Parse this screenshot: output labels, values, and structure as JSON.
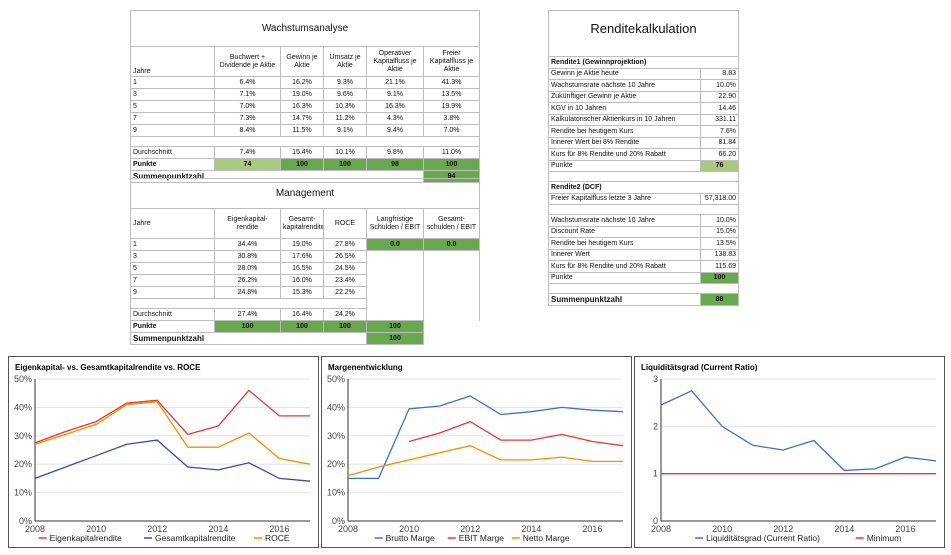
{
  "wachstum": {
    "title": "Wachstumsanalyse",
    "headers": [
      "Jahre",
      "Buchwert + Dividende je Aktie",
      "Gewinn je Aktie",
      "Umsatz je Aktie",
      "Operativer Kapitalfluss je Aktie",
      "Freier Kapitalfluss je Aktie"
    ],
    "rows": [
      [
        "1",
        "6.4%",
        "16.2%",
        "9.3%",
        "21.1%",
        "41.3%"
      ],
      [
        "3",
        "7.1%",
        "19.0%",
        "9.6%",
        "9.1%",
        "13.5%"
      ],
      [
        "5",
        "7.0%",
        "16.3%",
        "10.3%",
        "16.3%",
        "19.9%"
      ],
      [
        "7",
        "7.3%",
        "14.7%",
        "11.2%",
        "4.3%",
        "3.8%"
      ],
      [
        "9",
        "8.4%",
        "11.5%",
        "9.1%",
        "9.4%",
        "7.0%"
      ]
    ],
    "avg": [
      "Durchschnitt",
      "7.4%",
      "15.4%",
      "10.1%",
      "9.8%",
      "11.0%"
    ],
    "points": [
      "Punkte",
      "74",
      "100",
      "100",
      "98",
      "100"
    ],
    "sum_label": "Summenpunktzahl",
    "sum_value": "94"
  },
  "management": {
    "title": "Management",
    "headers": [
      "Jahre",
      "Eigenkapital-rendite",
      "Gesamt-kapitalrendite",
      "ROCE",
      "Langfristige Schulden / EBIT",
      "Gesamt-schulden / EBIT"
    ],
    "rows": [
      [
        "1",
        "34.4%",
        "19.0%",
        "27.8%",
        "0.0",
        "0.0"
      ],
      [
        "3",
        "30.8%",
        "17.6%",
        "26.5%"
      ],
      [
        "5",
        "28.0%",
        "16.5%",
        "24.5%"
      ],
      [
        "7",
        "26.2%",
        "16.0%",
        "23.4%"
      ],
      [
        "9",
        "24.8%",
        "15.3%",
        "22.2%"
      ]
    ],
    "avg": [
      "Durchschnitt",
      "27.4%",
      "16.4%",
      "24.2%"
    ],
    "points": [
      "Punkte",
      "100",
      "100",
      "100",
      "100"
    ],
    "sum_label": "Summenpunktzahl",
    "sum_value": "100"
  },
  "rendite": {
    "title": "Renditekalkulation",
    "s1_title": "Rendite1 (Gewinnprojektion)",
    "s1": [
      [
        "Gewinn je Aktie heute",
        "8.83"
      ],
      [
        "Wachstumsrate nächste 10 Jahre",
        "10.0%"
      ],
      [
        "Zukünftiger Gewinn je Aktie",
        "22.90"
      ],
      [
        "KGV in 10 Jahren",
        "14.46"
      ],
      [
        "Kalkulatorischer Aktienkurs in 10 Jahren",
        "331.11"
      ],
      [
        "Rendite bei heutigem Kurs",
        "7.6%"
      ],
      [
        "Innerer Wert bei 8% Rendite",
        "81.84"
      ],
      [
        "Kurs für 8% Rendite und 20% Rabatt",
        "66.20"
      ]
    ],
    "s1_points": [
      "Punkte",
      "76"
    ],
    "s2_title": "Rendite2 (DCF)",
    "s2_a": [
      [
        "Freier Kapitalfluss letzte 3 Jahre",
        "57,318.00"
      ]
    ],
    "s2": [
      [
        "Wachstumsrate nächste 10 Jahre",
        "10.0%"
      ],
      [
        "Discount Rate",
        "15.0%"
      ],
      [
        "Rendite bei heutigem Kurs",
        "13.5%"
      ],
      [
        "Innerer Wert",
        "138.83"
      ],
      [
        "Kurs für 8% Rendite und 20% Rabatt",
        "115.69"
      ]
    ],
    "s2_points": [
      "Punkte",
      "100"
    ],
    "sum_label": "Summenpunktzahl",
    "sum_value": "88"
  },
  "chart_data": [
    {
      "type": "line",
      "title": "Eigenkapital- vs. Gesamtkapitalrendite vs. ROCE",
      "x": [
        2008,
        2009,
        2010,
        2011,
        2012,
        2013,
        2014,
        2015,
        2016,
        2017
      ],
      "series": [
        {
          "name": "Eigenkapitalrendite",
          "color": "#e53935",
          "values": [
            27.5,
            31.5,
            35,
            41.5,
            42.5,
            30.5,
            33.5,
            46,
            37,
            37
          ]
        },
        {
          "name": "Gesamtkapitalrendite",
          "color": "#3949ab",
          "values": [
            15,
            19,
            23,
            27,
            28.5,
            19,
            18,
            20.5,
            15,
            14
          ]
        },
        {
          "name": "ROCE",
          "color": "#fb8c00",
          "values": [
            27,
            30.5,
            34,
            41,
            42,
            26,
            26,
            31,
            22,
            20
          ]
        }
      ],
      "ylim": [
        0,
        50
      ],
      "yticks": [
        "0%",
        "10%",
        "20%",
        "30%",
        "40%",
        "50%"
      ],
      "xticks": [
        "2008",
        "2010",
        "2012",
        "2014",
        "2016"
      ]
    },
    {
      "type": "line",
      "title": "Margenentwicklung",
      "x": [
        2008,
        2009,
        2010,
        2011,
        2012,
        2013,
        2014,
        2015,
        2016,
        2017
      ],
      "series": [
        {
          "name": "Brutto Marge",
          "color": "#3d6fd1",
          "values": [
            15,
            15,
            39.5,
            40.5,
            44,
            37.5,
            38.5,
            40,
            39,
            38.5
          ]
        },
        {
          "name": "EBIT Marge",
          "color": "#e53935",
          "values": [
            null,
            null,
            28,
            31,
            35,
            28.5,
            28.5,
            30.5,
            28,
            26.5
          ]
        },
        {
          "name": "Netto Marge",
          "color": "#fb8c00",
          "values": [
            16,
            19,
            21.5,
            24,
            26.5,
            21.5,
            21.5,
            22.5,
            21,
            21
          ]
        }
      ],
      "ylim": [
        0,
        50
      ],
      "yticks": [
        "0%",
        "10%",
        "20%",
        "30%",
        "40%",
        "50%"
      ],
      "xticks": [
        "2008",
        "2010",
        "2012",
        "2014",
        "2016"
      ]
    },
    {
      "type": "line",
      "title": "Liquiditätsgrad (Current Ratio)",
      "x": [
        2008,
        2009,
        2010,
        2011,
        2012,
        2013,
        2014,
        2015,
        2016,
        2017
      ],
      "series": [
        {
          "name": "Liquiditätsgrad (Current Ratio)",
          "color": "#3d6fd1",
          "values": [
            2.45,
            2.75,
            2.0,
            1.6,
            1.5,
            1.7,
            1.07,
            1.1,
            1.35,
            1.27
          ]
        },
        {
          "name": "Minimum",
          "color": "#e53935",
          "values": [
            1,
            1,
            1,
            1,
            1,
            1,
            1,
            1,
            1,
            1
          ]
        }
      ],
      "ylim": [
        0,
        3
      ],
      "yticks": [
        "0",
        "1",
        "2",
        "3"
      ],
      "xticks": [
        "2008",
        "2010",
        "2012",
        "2014",
        "2016"
      ]
    }
  ]
}
